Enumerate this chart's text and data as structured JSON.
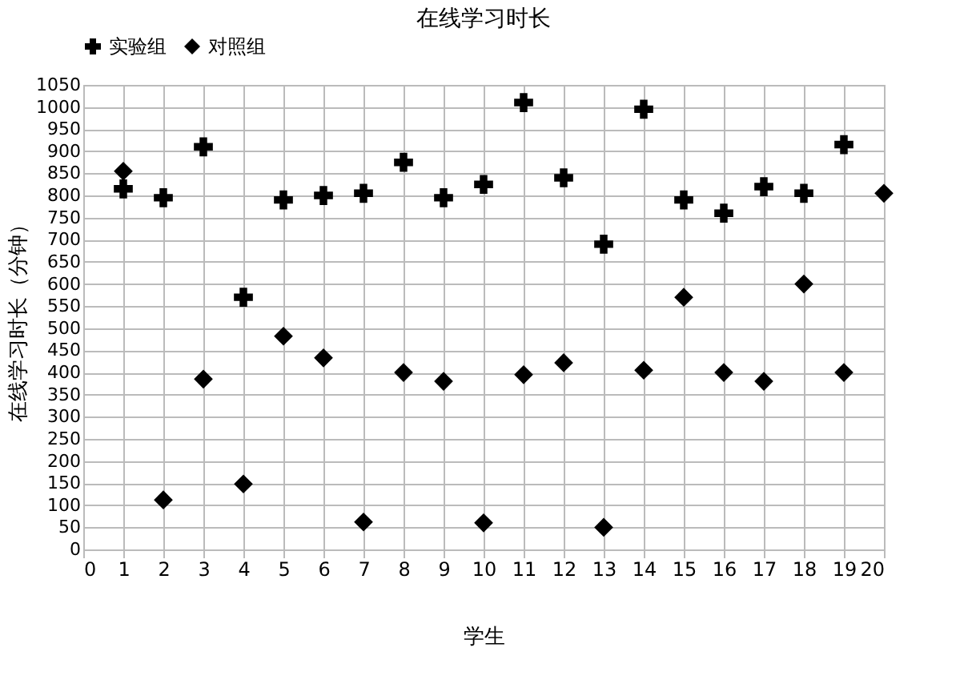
{
  "chart_data": {
    "type": "scatter",
    "title": "在线学习时长",
    "xlabel": "学生",
    "ylabel": "在线学习时长（分钟）",
    "xlim": [
      0,
      20
    ],
    "xticks": [
      0,
      1,
      2,
      3,
      4,
      5,
      6,
      7,
      8,
      9,
      10,
      11,
      12,
      13,
      14,
      15,
      16,
      17,
      18,
      19,
      20
    ],
    "ylim": [
      0,
      1050
    ],
    "yticks": [
      0,
      50,
      100,
      150,
      200,
      250,
      300,
      350,
      400,
      450,
      500,
      550,
      600,
      650,
      700,
      750,
      800,
      850,
      900,
      950,
      1000,
      1050
    ],
    "grid": true,
    "legend": "top",
    "series": [
      {
        "name": "实验组",
        "color": "#000000",
        "marker": "cross",
        "x": [
          1,
          2,
          3,
          4,
          5,
          6,
          7,
          8,
          9,
          10,
          11,
          12,
          13,
          14,
          15,
          16,
          17,
          18,
          19
        ],
        "values": [
          815,
          795,
          910,
          570,
          790,
          800,
          805,
          875,
          795,
          825,
          1010,
          840,
          690,
          995,
          790,
          760,
          820,
          805,
          915
        ]
      },
      {
        "name": "对照组",
        "color": "#000000",
        "marker": "diamond",
        "x": [
          1,
          2,
          3,
          4,
          5,
          6,
          7,
          8,
          9,
          10,
          11,
          12,
          13,
          14,
          15,
          16,
          17,
          18,
          19,
          20
        ],
        "values": [
          855,
          112,
          385,
          148,
          482,
          433,
          62,
          400,
          380,
          60,
          395,
          422,
          50,
          405,
          570,
          400,
          380,
          600,
          400,
          805
        ]
      }
    ]
  }
}
